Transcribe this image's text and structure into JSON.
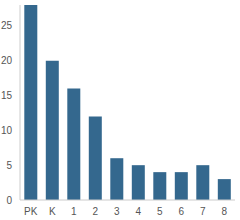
{
  "chart_data": {
    "type": "bar",
    "categories": [
      "PK",
      "K",
      "1",
      "2",
      "3",
      "4",
      "5",
      "6",
      "7",
      "8"
    ],
    "values": [
      28,
      20,
      16,
      12,
      6,
      5,
      4,
      4,
      5,
      3
    ],
    "color": "#34688e",
    "ylim": [
      0,
      28
    ],
    "yticks": [
      0,
      5,
      10,
      15,
      20,
      25
    ],
    "grid": false
  }
}
